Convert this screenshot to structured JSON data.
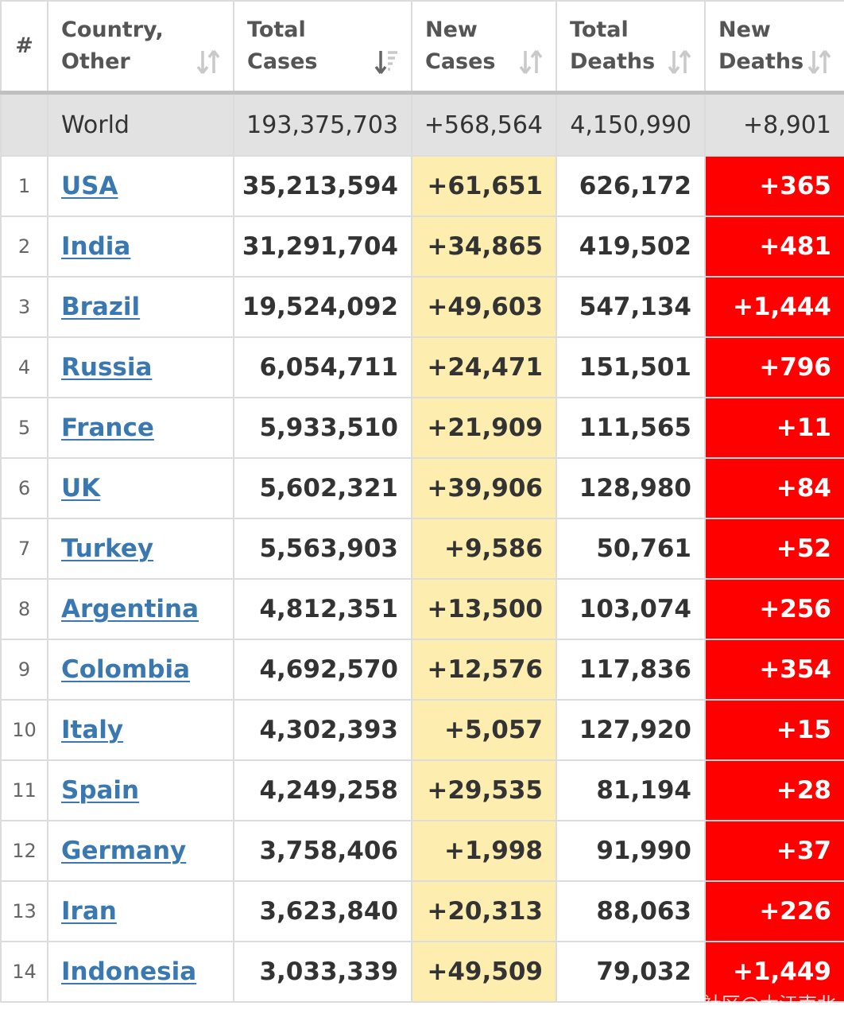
{
  "header": {
    "rank": "#",
    "country": "Country, Other",
    "total_cases": "Total Cases",
    "new_cases": "New Cases",
    "total_deaths": "Total Deaths",
    "new_deaths": "New Deaths"
  },
  "world": {
    "name": "World",
    "total_cases": "193,375,703",
    "new_cases": "+568,564",
    "total_deaths": "4,150,990",
    "new_deaths": "+8,901"
  },
  "rows": [
    {
      "rank": "1",
      "country": "USA",
      "total_cases": "35,213,594",
      "new_cases": "+61,651",
      "total_deaths": "626,172",
      "new_deaths": "+365"
    },
    {
      "rank": "2",
      "country": "India",
      "total_cases": "31,291,704",
      "new_cases": "+34,865",
      "total_deaths": "419,502",
      "new_deaths": "+481"
    },
    {
      "rank": "3",
      "country": "Brazil",
      "total_cases": "19,524,092",
      "new_cases": "+49,603",
      "total_deaths": "547,134",
      "new_deaths": "+1,444"
    },
    {
      "rank": "4",
      "country": "Russia",
      "total_cases": "6,054,711",
      "new_cases": "+24,471",
      "total_deaths": "151,501",
      "new_deaths": "+796"
    },
    {
      "rank": "5",
      "country": "France",
      "total_cases": "5,933,510",
      "new_cases": "+21,909",
      "total_deaths": "111,565",
      "new_deaths": "+11"
    },
    {
      "rank": "6",
      "country": "UK",
      "total_cases": "5,602,321",
      "new_cases": "+39,906",
      "total_deaths": "128,980",
      "new_deaths": "+84"
    },
    {
      "rank": "7",
      "country": "Turkey",
      "total_cases": "5,563,903",
      "new_cases": "+9,586",
      "total_deaths": "50,761",
      "new_deaths": "+52"
    },
    {
      "rank": "8",
      "country": "Argentina",
      "total_cases": "4,812,351",
      "new_cases": "+13,500",
      "total_deaths": "103,074",
      "new_deaths": "+256"
    },
    {
      "rank": "9",
      "country": "Colombia",
      "total_cases": "4,692,570",
      "new_cases": "+12,576",
      "total_deaths": "117,836",
      "new_deaths": "+354"
    },
    {
      "rank": "10",
      "country": "Italy",
      "total_cases": "4,302,393",
      "new_cases": "+5,057",
      "total_deaths": "127,920",
      "new_deaths": "+15"
    },
    {
      "rank": "11",
      "country": "Spain",
      "total_cases": "4,249,258",
      "new_cases": "+29,535",
      "total_deaths": "81,194",
      "new_deaths": "+28"
    },
    {
      "rank": "12",
      "country": "Germany",
      "total_cases": "3,758,406",
      "new_cases": "+1,998",
      "total_deaths": "91,990",
      "new_deaths": "+37"
    },
    {
      "rank": "13",
      "country": "Iran",
      "total_cases": "3,623,840",
      "new_cases": "+20,313",
      "total_deaths": "88,063",
      "new_deaths": "+226"
    },
    {
      "rank": "14",
      "country": "Indonesia",
      "total_cases": "3,033,339",
      "new_cases": "+49,509",
      "total_deaths": "79,032",
      "new_deaths": "+1,449"
    }
  ],
  "watermark": "社区@大江南北",
  "colors": {
    "link": "#3a78b2",
    "new_cases_bg": "#fdeeaf",
    "new_deaths_bg": "#ff0000",
    "world_row_bg": "#e2e2e2",
    "header_text": "#555555"
  },
  "icons": {
    "sort": "sort-arrows-icon",
    "sort_active": "sort-desc-active-icon"
  }
}
